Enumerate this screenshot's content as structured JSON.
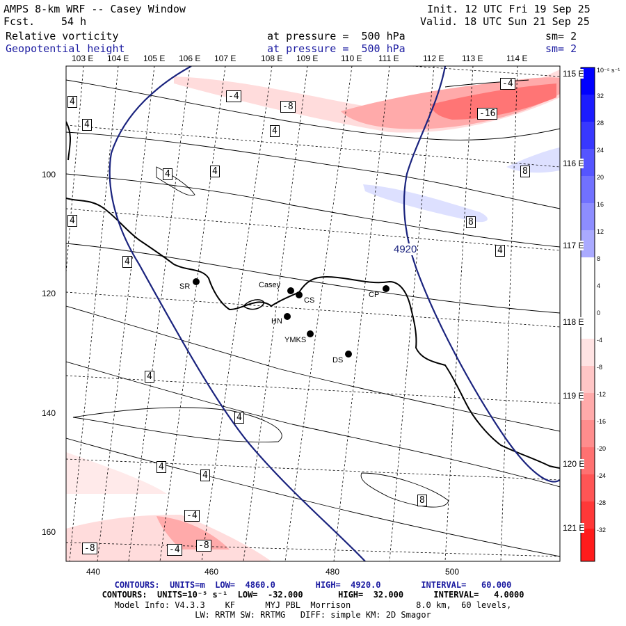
{
  "header": {
    "title": "AMPS 8-km WRF -- Casey Window",
    "forecast_label": "Fcst.",
    "forecast_value": "54 h",
    "init": "Init. 12 UTC Fri 19 Sep 25",
    "valid": "Valid. 18 UTC Sun 21 Sep 25"
  },
  "fields": [
    {
      "name": "Relative vorticity",
      "level": "at pressure =  500 hPa",
      "smooth": "sm= 2"
    },
    {
      "name": "Geopotential height",
      "level": "at pressure =  500 hPa",
      "smooth": "sm= 2"
    }
  ],
  "longitude_labels": [
    "103 E",
    "104 E",
    "105 E",
    "106 E",
    "107 E",
    "108 E",
    "109 E",
    "110 E",
    "111 E",
    "112 E",
    "113 E",
    "114 E"
  ],
  "latitude_labels": [
    "115 E",
    "116 E",
    "117 E",
    "118 E",
    "119 E",
    "120 E",
    "121 E"
  ],
  "y_axis": [
    "100",
    "120",
    "140",
    "160"
  ],
  "x_axis": [
    "440",
    "460",
    "480",
    "500"
  ],
  "stations": [
    "Casey",
    "CS",
    "SR",
    "HN",
    "YMKS",
    "DS",
    "CP"
  ],
  "contour_labels": {
    "vorticity": [
      "-4",
      "-4",
      "-8",
      "-16",
      "8",
      "8",
      "4",
      "4",
      "4",
      "4",
      "4",
      "4",
      "4",
      "4",
      "4",
      "4",
      "4",
      "4",
      "-4",
      "-4",
      "-8",
      "-8"
    ],
    "height": "4920"
  },
  "colorbar": {
    "unit": "10⁻⁵ s⁻¹",
    "ticks": [
      "32",
      "28",
      "24",
      "20",
      "16",
      "12",
      "8",
      "4",
      "0",
      "-4",
      "-8",
      "-12",
      "-16",
      "-20",
      "-24",
      "-28",
      "-32"
    ],
    "colors": [
      "#0000ff",
      "#1c1cff",
      "#3838ff",
      "#5555ff",
      "#7171ff",
      "#8d8dff",
      "#aaaaff",
      "#c6c6ff",
      "#ffffff",
      "#ffffff",
      "#ffe3e3",
      "#ffc6c6",
      "#ffaaaa",
      "#ff8d8d",
      "#ff7171",
      "#ff5555",
      "#ff3838",
      "#ff1c1c"
    ]
  },
  "footer": {
    "line1": "CONTOURS:  UNITS=m  LOW=  4860.0        HIGH=  4920.0        INTERVAL=   60.000",
    "line2": "CONTOURS:  UNITS=10⁻⁵ s⁻¹  LOW=  -32.000       HIGH=  32.000      INTERVAL=   4.0000",
    "line3": "Model Info: V4.3.3    KF      MYJ PBL  Morrison             8.0 km,  60 levels,",
    "line4": "LW: RRTM SW: RRTMG   DIFF: simple KM: 2D Smagor"
  }
}
